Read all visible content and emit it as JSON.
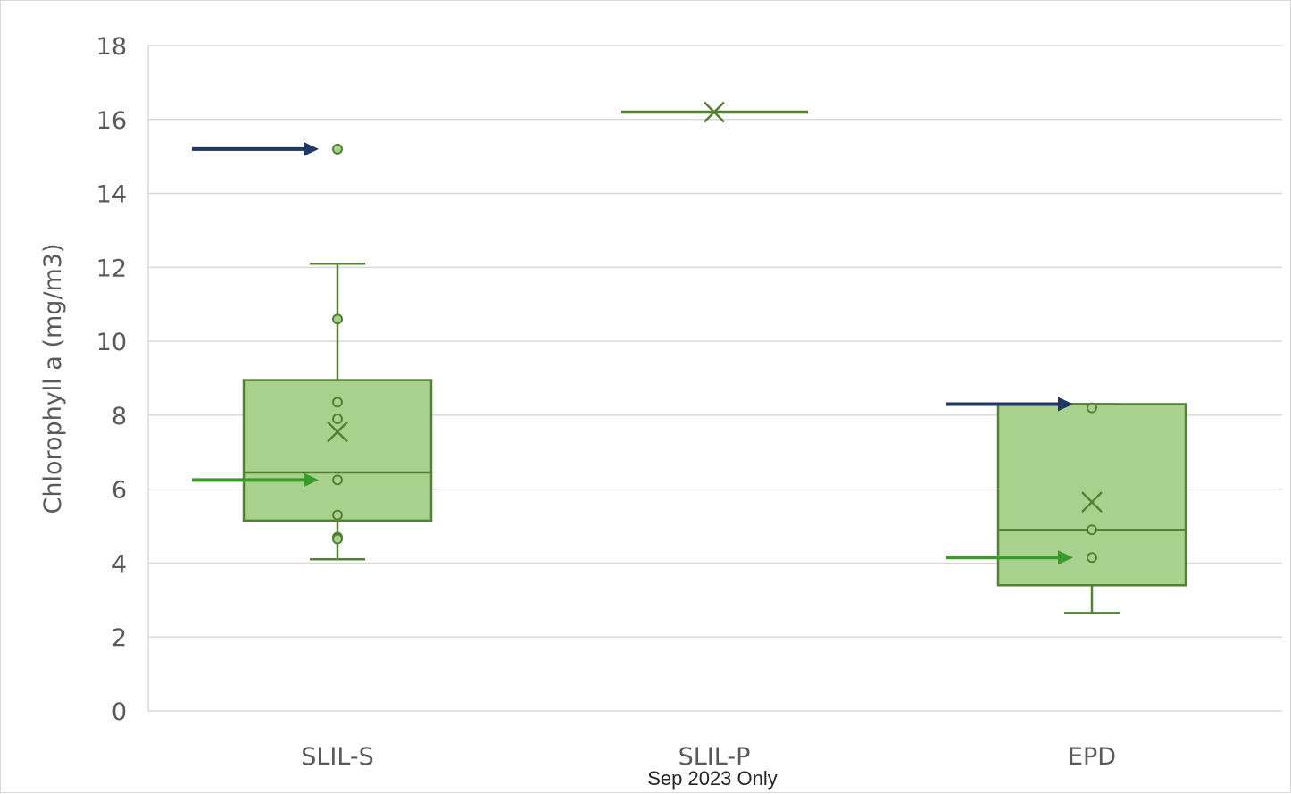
{
  "colors": {
    "box_fill": "#a9d18e",
    "box_stroke": "#548235",
    "point_fill": "#a9d18e",
    "gridline": "#d9d9d9",
    "arrow_navy": "#1f3864",
    "arrow_green": "#3b9b2a",
    "text": "#595959"
  },
  "chart_data": {
    "type": "box",
    "ylabel": "Chlorophyll a (mg/m3)",
    "ylim": [
      0,
      18
    ],
    "yticks": [
      0,
      2,
      4,
      6,
      8,
      10,
      12,
      14,
      16,
      18
    ],
    "grid": true,
    "categories": [
      "SLIL-S",
      "SLIL-P",
      "EPD"
    ],
    "category_notes": [
      "",
      "Sep 2023 Only",
      ""
    ],
    "boxes": [
      {
        "category": "SLIL-S",
        "whisker_low": 4.1,
        "q1": 5.15,
        "median": 6.45,
        "q3": 8.95,
        "whisker_high": 12.1,
        "mean": 7.55,
        "points": [
          15.2,
          10.6,
          8.35,
          7.9,
          6.25,
          5.3,
          4.7,
          4.65
        ],
        "outliers": [
          15.2
        ]
      },
      {
        "category": "SLIL-P",
        "whisker_low": 16.2,
        "q1": 16.2,
        "median": 16.2,
        "q3": 16.2,
        "whisker_high": 16.2,
        "mean": 16.2,
        "points": [],
        "outliers": []
      },
      {
        "category": "EPD",
        "whisker_low": 2.65,
        "q1": 3.4,
        "median": 4.9,
        "q3": 8.3,
        "whisker_high": 8.3,
        "mean": 5.65,
        "points": [
          8.2,
          4.9,
          4.15
        ],
        "outliers": []
      }
    ],
    "arrows": [
      {
        "category": "SLIL-S",
        "value": 15.2,
        "color": "navy"
      },
      {
        "category": "SLIL-S",
        "value": 6.25,
        "color": "green"
      },
      {
        "category": "EPD",
        "value": 8.3,
        "color": "navy"
      },
      {
        "category": "EPD",
        "value": 4.15,
        "color": "green"
      }
    ]
  }
}
